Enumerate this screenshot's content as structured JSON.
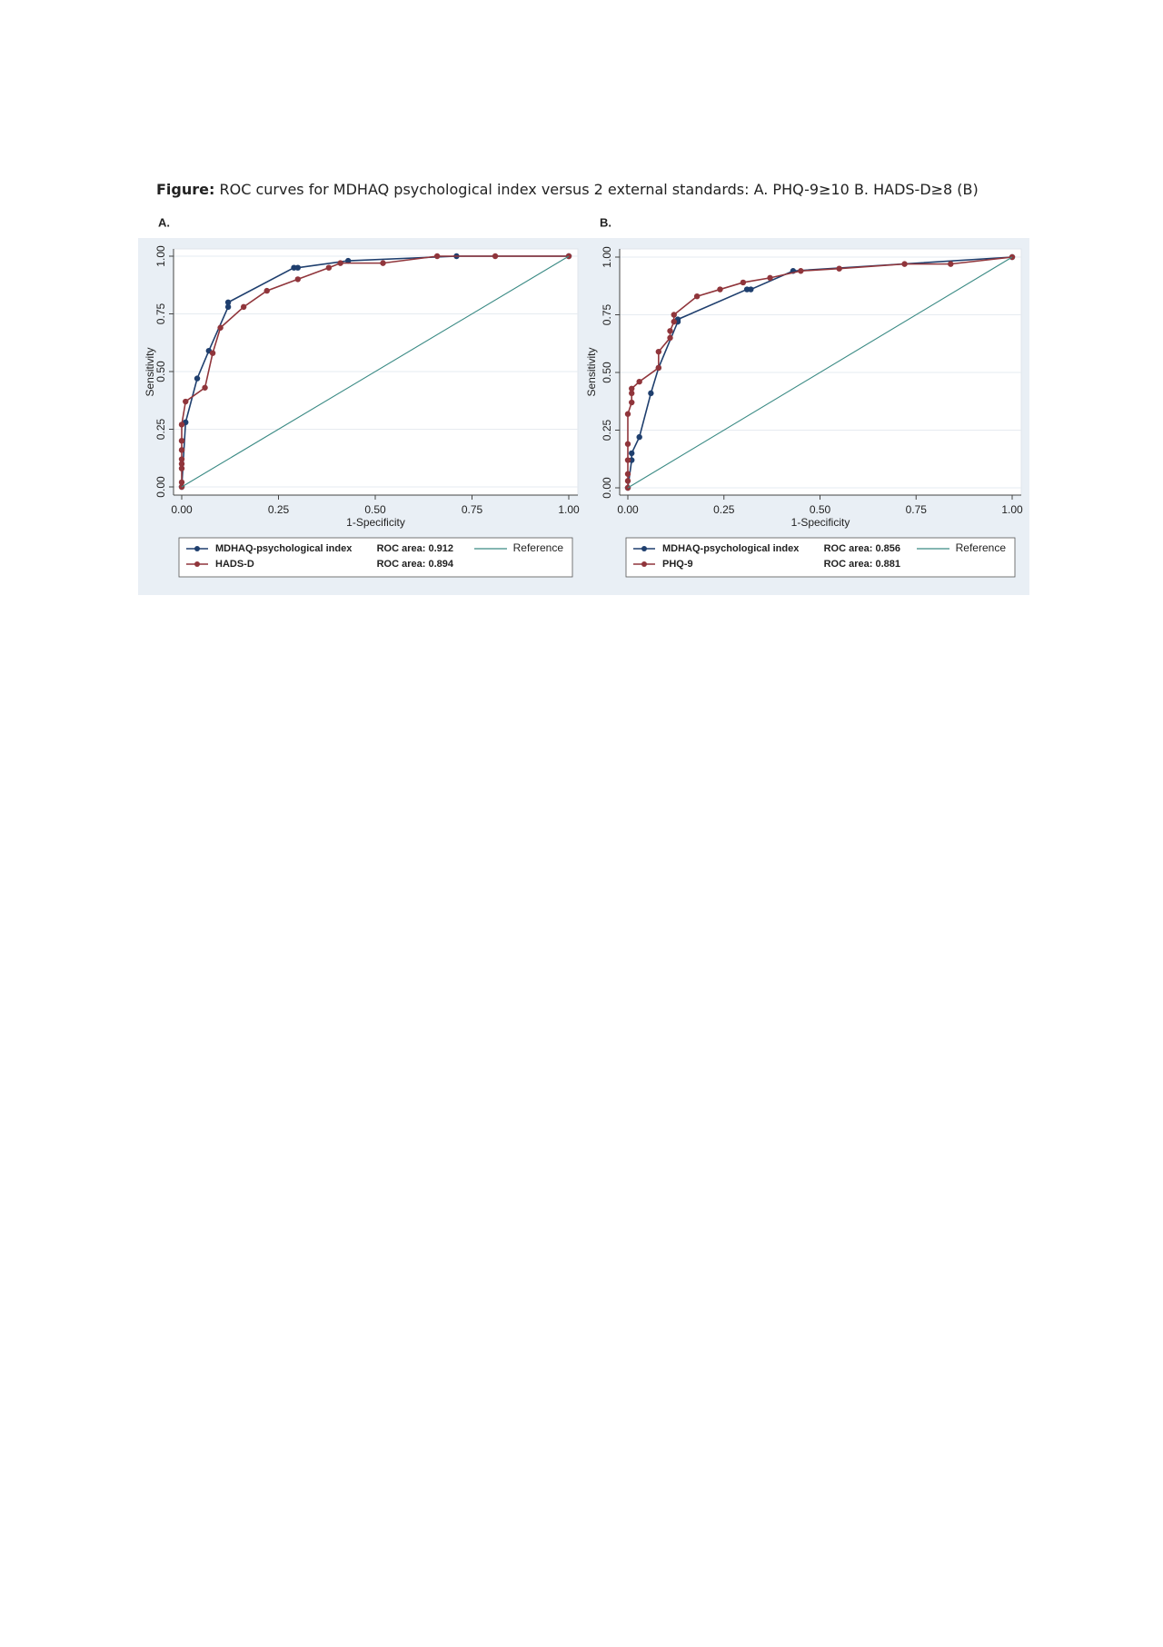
{
  "caption": {
    "label": "Figure:",
    "text": "ROC curves for MDHAQ psychological index  versus 2 external standards: A. PHQ-9≥10 B. HADS-D≥8 (B)"
  },
  "chart_data": [
    {
      "type": "line",
      "title": "A.",
      "xlabel": "1-Specificity",
      "ylabel": "Sensitivity",
      "xlim": [
        0,
        1
      ],
      "ylim": [
        0,
        1
      ],
      "xticks": [
        {
          "value": 0,
          "label": "0.00"
        },
        {
          "value": 0.25,
          "label": "0.25"
        },
        {
          "value": 0.5,
          "label": "0.50"
        },
        {
          "value": 0.75,
          "label": "0.75"
        },
        {
          "value": 1,
          "label": "1.00"
        }
      ],
      "yticks": [
        {
          "value": 0,
          "label": "0.00"
        },
        {
          "value": 0.25,
          "label": "0.25"
        },
        {
          "value": 0.5,
          "label": "0.50"
        },
        {
          "value": 0.75,
          "label": "0.75"
        },
        {
          "value": 1,
          "label": "1.00"
        }
      ],
      "grid": true,
      "series": [
        {
          "name": "MDHAQ-psychological index",
          "legend_note": "ROC area: 0.912",
          "color": "#1f3f6e",
          "markers": true,
          "x": [
            0,
            0.01,
            0.04,
            0.07,
            0.12,
            0.12,
            0.29,
            0.3,
            0.43,
            0.71,
            1
          ],
          "values": [
            0,
            0.28,
            0.47,
            0.59,
            0.78,
            0.8,
            0.95,
            0.95,
            0.98,
            1,
            1
          ]
        },
        {
          "name": "HADS-D",
          "legend_note": "ROC area: 0.894",
          "color": "#90353b",
          "markers": true,
          "x": [
            0,
            0,
            0,
            0,
            0,
            0,
            0,
            0,
            0.01,
            0.06,
            0.08,
            0.1,
            0.16,
            0.22,
            0.3,
            0.38,
            0.41,
            0.52,
            0.66,
            0.81,
            1
          ],
          "values": [
            0,
            0.02,
            0.08,
            0.1,
            0.12,
            0.16,
            0.2,
            0.27,
            0.37,
            0.43,
            0.58,
            0.69,
            0.78,
            0.85,
            0.9,
            0.95,
            0.97,
            0.97,
            1,
            1,
            1
          ]
        },
        {
          "name": "Reference",
          "color": "#3a8a84",
          "markers": false,
          "x": [
            0,
            1
          ],
          "values": [
            0,
            1
          ]
        }
      ]
    },
    {
      "type": "line",
      "title": "B.",
      "xlabel": "1-Specificity",
      "ylabel": "Sensitivity",
      "xlim": [
        0,
        1
      ],
      "ylim": [
        0,
        1
      ],
      "xticks": [
        {
          "value": 0,
          "label": "0.00"
        },
        {
          "value": 0.25,
          "label": "0.25"
        },
        {
          "value": 0.5,
          "label": "0.50"
        },
        {
          "value": 0.75,
          "label": "0.75"
        },
        {
          "value": 1,
          "label": "1.00"
        }
      ],
      "yticks": [
        {
          "value": 0,
          "label": "0.00"
        },
        {
          "value": 0.25,
          "label": "0.25"
        },
        {
          "value": 0.5,
          "label": "0.50"
        },
        {
          "value": 0.75,
          "label": "0.75"
        },
        {
          "value": 1,
          "label": "1.00"
        }
      ],
      "grid": true,
      "series": [
        {
          "name": "MDHAQ-psychological index",
          "legend_note": "ROC area: 0.856",
          "color": "#1f3f6e",
          "markers": true,
          "x": [
            0,
            0.01,
            0.01,
            0.03,
            0.06,
            0.08,
            0.13,
            0.13,
            0.31,
            0.32,
            0.43,
            1
          ],
          "values": [
            0,
            0.12,
            0.15,
            0.22,
            0.41,
            0.52,
            0.72,
            0.73,
            0.86,
            0.86,
            0.94,
            1
          ]
        },
        {
          "name": "PHQ-9",
          "legend_note": "ROC area: 0.881",
          "color": "#90353b",
          "markers": true,
          "x": [
            0,
            0,
            0,
            0,
            0,
            0,
            0.01,
            0.01,
            0.01,
            0.03,
            0.08,
            0.08,
            0.11,
            0.11,
            0.12,
            0.12,
            0.18,
            0.24,
            0.3,
            0.37,
            0.45,
            0.55,
            0.72,
            0.84,
            1
          ],
          "values": [
            0,
            0.03,
            0.06,
            0.12,
            0.19,
            0.32,
            0.37,
            0.41,
            0.43,
            0.46,
            0.52,
            0.59,
            0.65,
            0.68,
            0.72,
            0.75,
            0.83,
            0.86,
            0.89,
            0.91,
            0.94,
            0.95,
            0.97,
            0.97,
            1
          ]
        },
        {
          "name": "Reference",
          "color": "#3a8a84",
          "markers": false,
          "x": [
            0,
            1
          ],
          "values": [
            0,
            1
          ]
        }
      ]
    }
  ]
}
